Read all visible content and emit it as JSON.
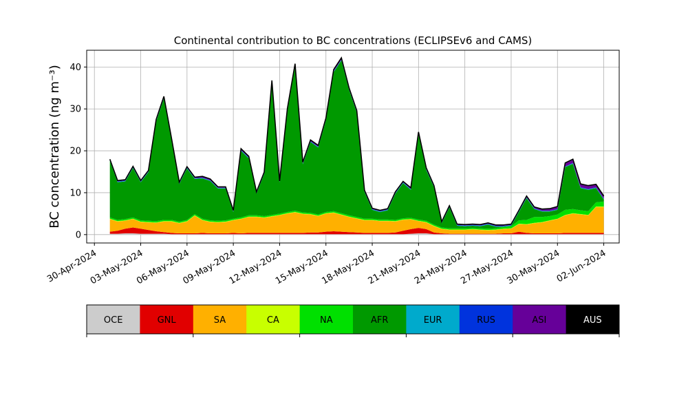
{
  "chart_data": {
    "type": "area",
    "stacked": true,
    "title": "Continental contribution to BC concentrations (ECLIPSEv6 and CAMS)",
    "ylabel": "BC concentration (ng m⁻³)",
    "xlabel": "",
    "grid": true,
    "xlim": [
      "2024-04-29T12:00",
      "2024-06-03T00:00"
    ],
    "ylim": [
      -2,
      44
    ],
    "yticks": [
      0,
      10,
      20,
      30,
      40
    ],
    "xticks": [
      {
        "date": "2024-04-30",
        "label": "30-Apr-2024"
      },
      {
        "date": "2024-05-03",
        "label": "03-May-2024"
      },
      {
        "date": "2024-05-06",
        "label": "06-May-2024"
      },
      {
        "date": "2024-05-09",
        "label": "09-May-2024"
      },
      {
        "date": "2024-05-12",
        "label": "12-May-2024"
      },
      {
        "date": "2024-05-15",
        "label": "15-May-2024"
      },
      {
        "date": "2024-05-18",
        "label": "18-May-2024"
      },
      {
        "date": "2024-05-21",
        "label": "21-May-2024"
      },
      {
        "date": "2024-05-24",
        "label": "24-May-2024"
      },
      {
        "date": "2024-05-27",
        "label": "27-May-2024"
      },
      {
        "date": "2024-05-30",
        "label": "30-May-2024"
      },
      {
        "date": "2024-06-02",
        "label": "02-Jun-2024"
      }
    ],
    "x": [
      "2024-05-01",
      "2024-05-01T12:00",
      "2024-05-02",
      "2024-05-02T12:00",
      "2024-05-03",
      "2024-05-03T12:00",
      "2024-05-04",
      "2024-05-04T12:00",
      "2024-05-05",
      "2024-05-05T12:00",
      "2024-05-06",
      "2024-05-06T12:00",
      "2024-05-07",
      "2024-05-07T12:00",
      "2024-05-08",
      "2024-05-08T12:00",
      "2024-05-09",
      "2024-05-09T12:00",
      "2024-05-10",
      "2024-05-10T12:00",
      "2024-05-11",
      "2024-05-11T12:00",
      "2024-05-12",
      "2024-05-12T12:00",
      "2024-05-13",
      "2024-05-13T12:00",
      "2024-05-14",
      "2024-05-14T12:00",
      "2024-05-15",
      "2024-05-15T12:00",
      "2024-05-16",
      "2024-05-16T12:00",
      "2024-05-17",
      "2024-05-17T12:00",
      "2024-05-18",
      "2024-05-18T12:00",
      "2024-05-19",
      "2024-05-19T12:00",
      "2024-05-20",
      "2024-05-20T12:00",
      "2024-05-21",
      "2024-05-21T12:00",
      "2024-05-22",
      "2024-05-22T12:00",
      "2024-05-23",
      "2024-05-23T12:00",
      "2024-05-24",
      "2024-05-24T12:00",
      "2024-05-25",
      "2024-05-25T12:00",
      "2024-05-26",
      "2024-05-26T12:00",
      "2024-05-27",
      "2024-05-27T12:00",
      "2024-05-28",
      "2024-05-28T12:00",
      "2024-05-29",
      "2024-05-29T12:00",
      "2024-05-30",
      "2024-05-30T12:00",
      "2024-05-31",
      "2024-05-31T12:00",
      "2024-06-01",
      "2024-06-01T12:00",
      "2024-06-02"
    ],
    "series": [
      {
        "name": "OCE",
        "color": "#cccccc",
        "values": [
          0.2,
          0.2,
          0.3,
          0.3,
          0.2,
          0.2,
          0.2,
          0.2,
          0.1,
          0.1,
          0.1,
          0.1,
          0.1,
          0.1,
          0.1,
          0.1,
          0.1,
          0.1,
          0.1,
          0.1,
          0.1,
          0.1,
          0.1,
          0.1,
          0.1,
          0.1,
          0.1,
          0.1,
          0.1,
          0.1,
          0.1,
          0.1,
          0.1,
          0.1,
          0.1,
          0.1,
          0.1,
          0.1,
          0.1,
          0.2,
          0.3,
          0.3,
          0.1,
          0.1,
          0.1,
          0.1,
          0.1,
          0.1,
          0.1,
          0.1,
          0.1,
          0.1,
          0.1,
          0.1,
          0.1,
          0.1,
          0.1,
          0.1,
          0.1,
          0.1,
          0.1,
          0.1,
          0.1,
          0.1,
          0.1
        ]
      },
      {
        "name": "GNL",
        "color": "#e10000",
        "values": [
          0.5,
          0.7,
          1.1,
          1.4,
          1.2,
          0.9,
          0.6,
          0.4,
          0.3,
          0.2,
          0.2,
          0.2,
          0.3,
          0.2,
          0.2,
          0.2,
          0.3,
          0.2,
          0.3,
          0.3,
          0.3,
          0.3,
          0.3,
          0.3,
          0.3,
          0.3,
          0.4,
          0.4,
          0.6,
          0.7,
          0.6,
          0.5,
          0.4,
          0.3,
          0.3,
          0.3,
          0.3,
          0.4,
          0.8,
          1.1,
          1.3,
          1.0,
          0.4,
          0.2,
          0.1,
          0.1,
          0.1,
          0.1,
          0.1,
          0.1,
          0.1,
          0.2,
          0.2,
          0.6,
          0.3,
          0.2,
          0.2,
          0.2,
          0.2,
          0.3,
          0.3,
          0.3,
          0.3,
          0.3,
          0.3
        ]
      },
      {
        "name": "SA",
        "color": "#ffb000",
        "values": [
          3.0,
          2.2,
          1.9,
          2.0,
          1.6,
          1.8,
          2.0,
          2.5,
          2.7,
          2.4,
          2.8,
          4.2,
          3.0,
          2.7,
          2.6,
          2.7,
          3.0,
          3.4,
          3.8,
          3.8,
          3.6,
          3.9,
          4.2,
          4.6,
          4.9,
          4.5,
          4.3,
          3.9,
          4.3,
          4.4,
          4.0,
          3.6,
          3.3,
          3.0,
          3.0,
          2.8,
          2.8,
          2.6,
          2.6,
          2.3,
          1.6,
          1.6,
          1.5,
          1.0,
          0.9,
          0.9,
          0.9,
          1.0,
          0.9,
          0.8,
          0.9,
          1.0,
          1.1,
          1.8,
          2.0,
          2.4,
          2.6,
          3.0,
          3.4,
          4.2,
          4.6,
          4.4,
          4.2,
          6.2,
          6.2
        ]
      },
      {
        "name": "CA",
        "color": "#c8ff00",
        "values": [
          0.1,
          0.1,
          0.1,
          0.1,
          0.1,
          0.1,
          0.1,
          0.1,
          0.1,
          0.1,
          0.1,
          0.1,
          0.1,
          0.1,
          0.1,
          0.1,
          0.1,
          0.1,
          0.1,
          0.1,
          0.1,
          0.1,
          0.1,
          0.1,
          0.1,
          0.1,
          0.1,
          0.1,
          0.1,
          0.1,
          0.1,
          0.1,
          0.1,
          0.1,
          0.1,
          0.1,
          0.1,
          0.1,
          0.1,
          0.1,
          0.1,
          0.1,
          0.1,
          0.1,
          0.1,
          0.1,
          0.1,
          0.1,
          0.1,
          0.1,
          0.1,
          0.1,
          0.1,
          0.1,
          0.1,
          0.1,
          0.1,
          0.1,
          0.1,
          0.1,
          0.1,
          0.1,
          0.1,
          0.1,
          0.1
        ]
      },
      {
        "name": "NA",
        "color": "#00e000",
        "values": [
          0.3,
          0.3,
          0.3,
          0.3,
          0.3,
          0.3,
          0.3,
          0.3,
          0.3,
          0.3,
          0.3,
          0.3,
          0.3,
          0.3,
          0.3,
          0.3,
          0.3,
          0.3,
          0.3,
          0.3,
          0.3,
          0.3,
          0.3,
          0.3,
          0.3,
          0.3,
          0.3,
          0.3,
          0.3,
          0.3,
          0.3,
          0.3,
          0.3,
          0.3,
          0.3,
          0.3,
          0.3,
          0.3,
          0.3,
          0.3,
          0.3,
          0.3,
          0.3,
          0.3,
          0.3,
          0.3,
          0.3,
          0.3,
          0.3,
          0.3,
          0.3,
          0.4,
          0.5,
          0.8,
          1.0,
          1.4,
          1.2,
          1.0,
          1.0,
          1.2,
          1.0,
          0.9,
          0.9,
          1.0,
          1.2
        ]
      },
      {
        "name": "AFR",
        "color": "#009900",
        "values": [
          13.5,
          9.0,
          9.0,
          11.8,
          9.1,
          11.6,
          23.8,
          29.0,
          19.0,
          9.0,
          12.3,
          8.4,
          9.6,
          9.4,
          7.7,
          7.6,
          1.6,
          15.9,
          13.6,
          5.2,
          10.1,
          31.6,
          7.4,
          24.2,
          34.5,
          11.5,
          16.9,
          16.0,
          21.9,
          33.2,
          36.5,
          29.9,
          24.9,
          6.4,
          2.1,
          1.8,
          2.2,
          6.3,
          8.4,
          6.7,
          20.4,
          12.1,
          8.9,
          1.0,
          5.0,
          0.6,
          0.5,
          0.5,
          0.5,
          1.0,
          0.4,
          0.1,
          0.1,
          2.0,
          5.2,
          1.9,
          1.3,
          1.1,
          1.1,
          10.2,
          10.8,
          5.3,
          5.1,
          3.4,
          0.5
        ]
      },
      {
        "name": "EUR",
        "color": "#00aacc",
        "values": [
          0.1,
          0.1,
          0.1,
          0.1,
          0.1,
          0.1,
          0.1,
          0.1,
          0.1,
          0.1,
          0.1,
          0.1,
          0.1,
          0.1,
          0.1,
          0.1,
          0.1,
          0.1,
          0.1,
          0.1,
          0.1,
          0.1,
          0.1,
          0.1,
          0.1,
          0.1,
          0.1,
          0.1,
          0.1,
          0.1,
          0.1,
          0.1,
          0.1,
          0.1,
          0.1,
          0.1,
          0.1,
          0.1,
          0.1,
          0.1,
          0.1,
          0.1,
          0.1,
          0.1,
          0.1,
          0.1,
          0.1,
          0.1,
          0.1,
          0.1,
          0.1,
          0.1,
          0.1,
          0.1,
          0.1,
          0.1,
          0.1,
          0.1,
          0.1,
          0.1,
          0.1,
          0.1,
          0.1,
          0.1,
          0.1
        ]
      },
      {
        "name": "RUS",
        "color": "#0033dd",
        "values": [
          0.1,
          0.1,
          0.1,
          0.1,
          0.1,
          0.1,
          0.1,
          0.1,
          0.1,
          0.1,
          0.1,
          0.1,
          0.1,
          0.1,
          0.1,
          0.1,
          0.1,
          0.1,
          0.1,
          0.1,
          0.1,
          0.1,
          0.1,
          0.1,
          0.1,
          0.1,
          0.1,
          0.1,
          0.1,
          0.1,
          0.1,
          0.1,
          0.1,
          0.1,
          0.1,
          0.1,
          0.1,
          0.1,
          0.1,
          0.1,
          0.1,
          0.1,
          0.1,
          0.1,
          0.1,
          0.1,
          0.1,
          0.1,
          0.1,
          0.1,
          0.1,
          0.1,
          0.1,
          0.1,
          0.1,
          0.1,
          0.1,
          0.1,
          0.1,
          0.1,
          0.1,
          0.1,
          0.1,
          0.1,
          0.1
        ]
      },
      {
        "name": "ASI",
        "color": "#660099",
        "values": [
          0.1,
          0.1,
          0.1,
          0.1,
          0.1,
          0.1,
          0.2,
          0.2,
          0.1,
          0.1,
          0.1,
          0.1,
          0.2,
          0.2,
          0.1,
          0.1,
          0.1,
          0.2,
          0.2,
          0.1,
          0.1,
          0.2,
          0.1,
          0.2,
          0.3,
          0.2,
          0.2,
          0.2,
          0.2,
          0.3,
          0.3,
          0.2,
          0.2,
          0.1,
          0.1,
          0.1,
          0.1,
          0.1,
          0.1,
          0.2,
          0.2,
          0.2,
          0.1,
          0.1,
          0.1,
          0.1,
          0.1,
          0.1,
          0.1,
          0.1,
          0.1,
          0.1,
          0.1,
          0.1,
          0.2,
          0.2,
          0.3,
          0.4,
          0.5,
          0.7,
          0.8,
          0.7,
          0.7,
          0.6,
          0.5
        ]
      },
      {
        "name": "AUS",
        "color": "#000000",
        "values": [
          0.1,
          0.1,
          0.1,
          0.1,
          0.1,
          0.1,
          0.1,
          0.1,
          0.1,
          0.1,
          0.1,
          0.1,
          0.1,
          0.1,
          0.1,
          0.1,
          0.1,
          0.1,
          0.1,
          0.1,
          0.1,
          0.1,
          0.1,
          0.1,
          0.1,
          0.1,
          0.1,
          0.1,
          0.1,
          0.1,
          0.1,
          0.1,
          0.1,
          0.1,
          0.1,
          0.1,
          0.1,
          0.1,
          0.1,
          0.1,
          0.1,
          0.1,
          0.1,
          0.1,
          0.1,
          0.1,
          0.1,
          0.1,
          0.1,
          0.1,
          0.1,
          0.1,
          0.1,
          0.1,
          0.1,
          0.1,
          0.1,
          0.1,
          0.1,
          0.1,
          0.1,
          0.1,
          0.1,
          0.1,
          0.1
        ]
      }
    ],
    "colorbar": {
      "labels": [
        "OCE",
        "GNL",
        "SA",
        "CA",
        "NA",
        "AFR",
        "EUR",
        "RUS",
        "ASI",
        "AUS"
      ],
      "colors": [
        "#cccccc",
        "#e10000",
        "#ffb000",
        "#c8ff00",
        "#00e000",
        "#009900",
        "#00aacc",
        "#0033dd",
        "#660099",
        "#000000"
      ],
      "label_colors": [
        "#000000",
        "#000000",
        "#000000",
        "#000000",
        "#000000",
        "#000000",
        "#000000",
        "#000000",
        "#000000",
        "#ffffff"
      ]
    }
  }
}
